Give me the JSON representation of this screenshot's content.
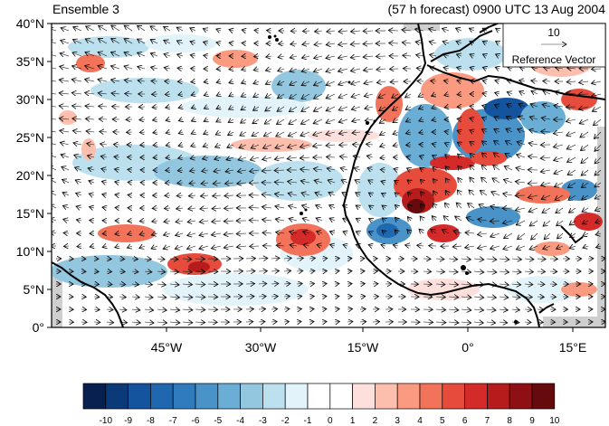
{
  "titles": {
    "left": "Ensemble 3",
    "right": "(57 h forecast) 0900 UTC 13 Aug 2004"
  },
  "map": {
    "lat_labels": [
      "40°N",
      "35°N",
      "30°N",
      "25°N",
      "20°N",
      "15°N",
      "10°N",
      "5°N",
      "0°"
    ],
    "lon_labels": [
      "45°W",
      "30°W",
      "15°W",
      "0°",
      "15°E"
    ],
    "lat_range": [
      0,
      40
    ],
    "lon_range": [
      -57,
      17
    ]
  },
  "reference_vector": {
    "magnitude": "10",
    "label": "Reference Vector"
  },
  "colorbar": {
    "labels": [
      "-10",
      "-9",
      "-8",
      "-7",
      "-6",
      "-5",
      "-4",
      "-3",
      "-2",
      "-1",
      "0",
      "1",
      "2",
      "3",
      "4",
      "5",
      "6",
      "7",
      "8",
      "9",
      "10"
    ],
    "colors": [
      "#08204f",
      "#0b3a78",
      "#14549e",
      "#1f68b0",
      "#2f7bbd",
      "#4a93c9",
      "#6aadd5",
      "#93c6df",
      "#bde0ee",
      "#e2f3fa",
      "#ffffff",
      "#ffffff",
      "#fde0dc",
      "#fcbfae",
      "#fa9a81",
      "#f2735a",
      "#e64b3c",
      "#d42b2a",
      "#b71c1c",
      "#8e1014",
      "#670a0d"
    ]
  }
}
